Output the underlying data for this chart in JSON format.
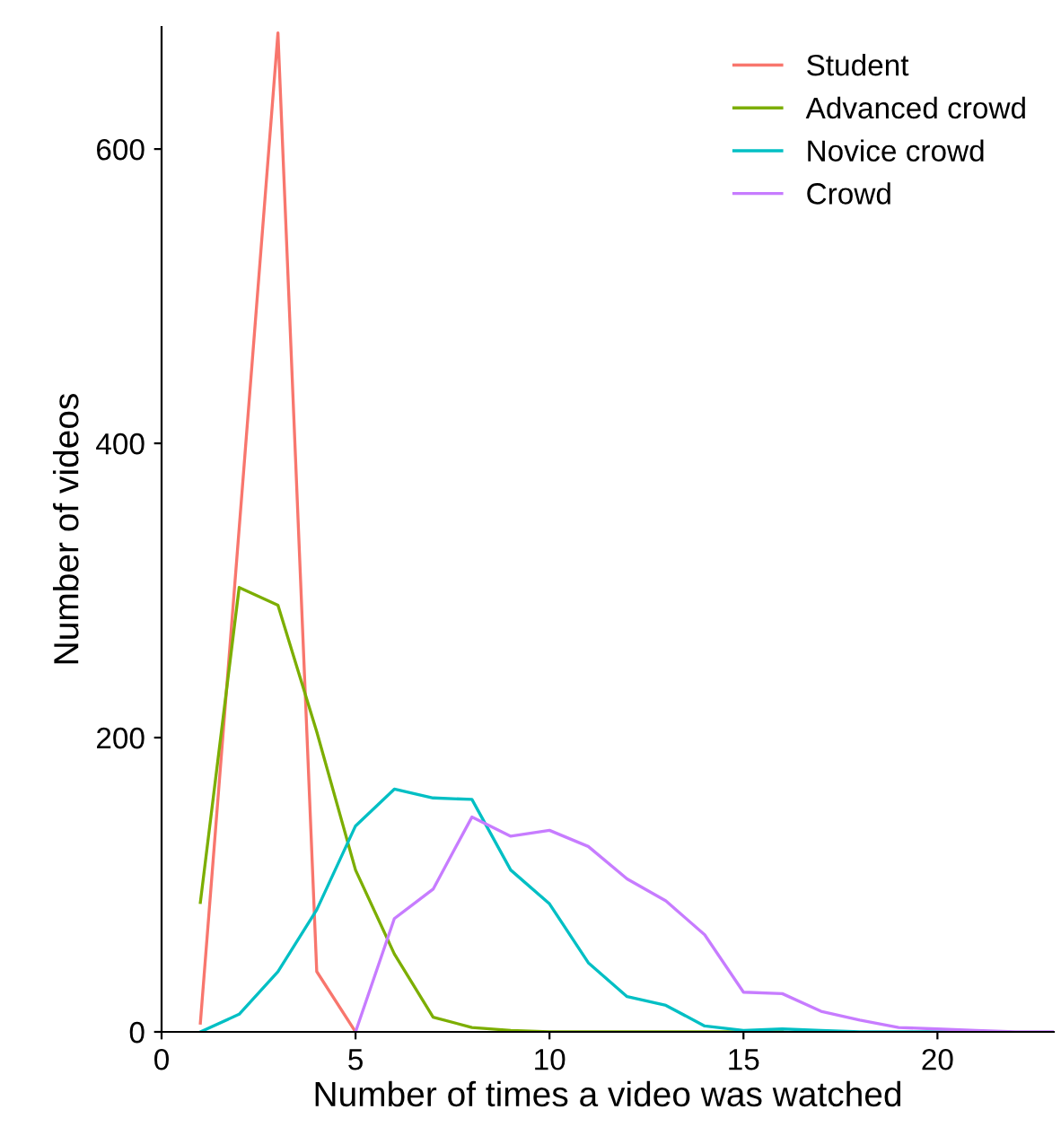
{
  "chart_data": {
    "type": "line",
    "xlabel": "Number of times a video was watched",
    "ylabel": "Number of videos",
    "xlim": [
      0,
      23
    ],
    "xticks": [
      0,
      5,
      10,
      15,
      20
    ],
    "ylim": [
      0,
      683
    ],
    "yticks": [
      0,
      200,
      400,
      600
    ],
    "grid": false,
    "legend": "top right",
    "marker": "none",
    "line_style": "solid",
    "series": [
      {
        "name": "Student",
        "color": "#f8766d",
        "x": [
          1,
          2,
          3,
          4,
          5
        ],
        "values": [
          6,
          342,
          679,
          41,
          0
        ]
      },
      {
        "name": "Advanced crowd",
        "color": "#7cae00",
        "x": [
          1,
          2,
          3,
          4,
          5,
          6,
          7,
          8,
          9,
          10,
          11,
          12,
          13,
          14,
          15,
          16
        ],
        "values": [
          88,
          302,
          290,
          204,
          110,
          53,
          10,
          3,
          1,
          0,
          0,
          0,
          0,
          0,
          0,
          0
        ]
      },
      {
        "name": "Novice crowd",
        "color": "#00bfc4",
        "x": [
          1,
          2,
          3,
          4,
          5,
          6,
          7,
          8,
          9,
          10,
          11,
          12,
          13,
          14,
          15,
          16,
          17,
          18,
          19,
          20,
          21
        ],
        "values": [
          0,
          12,
          41,
          83,
          140,
          165,
          159,
          158,
          110,
          87,
          47,
          24,
          18,
          4,
          1,
          2,
          1,
          0,
          0,
          0,
          0
        ]
      },
      {
        "name": "Crowd",
        "color": "#c77cff",
        "x": [
          5,
          6,
          7,
          8,
          9,
          10,
          11,
          12,
          13,
          14,
          15,
          16,
          17,
          18,
          19,
          20,
          21,
          22,
          23
        ],
        "values": [
          0,
          77,
          97,
          146,
          133,
          137,
          126,
          104,
          89,
          66,
          27,
          26,
          14,
          8,
          3,
          2,
          1,
          0,
          0
        ]
      }
    ]
  }
}
